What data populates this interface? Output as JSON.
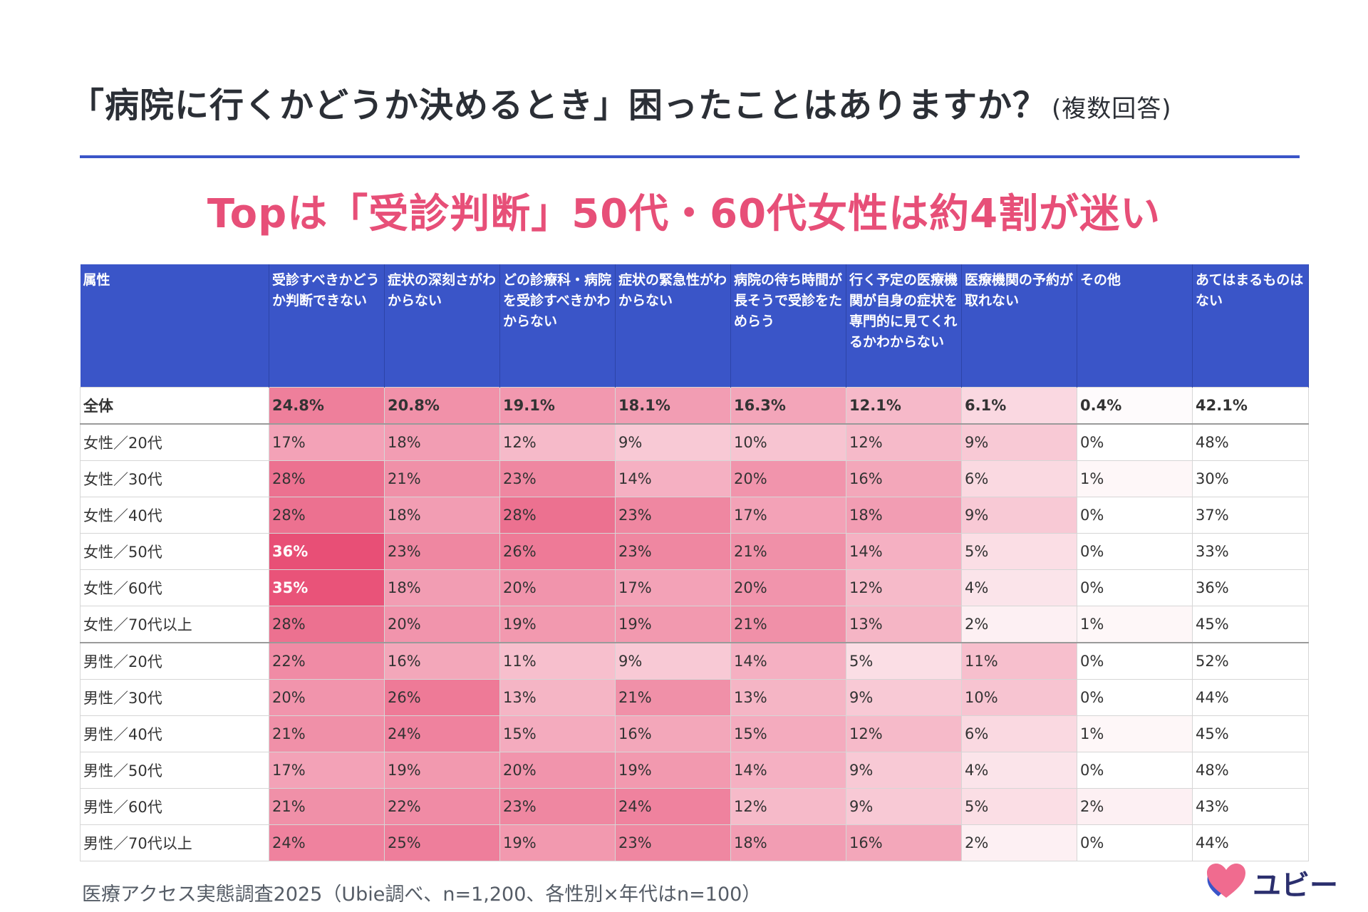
{
  "title": {
    "main": "「病院に行くかどうか決めるとき」困ったことはありますか？",
    "note": "(複数回答)"
  },
  "headline": "Topは「受診判断」50代・60代女性は約4割が迷い",
  "source": "医療アクセス実態調査2025（Ubie調べ、n=1,200、各性別×年代はn=100）",
  "logo": {
    "text": "ユビー"
  },
  "colors": {
    "header": "#3a55c8",
    "accent": "#e74f78",
    "heat_max": "#e84f76",
    "heat_min": "#ffffff"
  },
  "chart_data": {
    "type": "table",
    "columns": [
      "属性",
      "受診すべきかどうか判断できない",
      "症状の深刻さがわからない",
      "どの診療科・病院を受診すべきかわからない",
      "症状の緊急性がわからない",
      "病院の待ち時間が長そうで受診をためらう",
      "行く予定の医療機関が自身の症状を専門的に見てくれるかわからない",
      "医療機関の予約が取れない",
      "その他",
      "あてはまるものはない"
    ],
    "rows": [
      {
        "label": "全体",
        "cells": [
          "24.8%",
          "20.8%",
          "19.1%",
          "18.1%",
          "16.3%",
          "12.1%",
          "6.1%",
          "0.4%",
          "42.1%"
        ],
        "values": [
          24.8,
          20.8,
          19.1,
          18.1,
          16.3,
          12.1,
          6.1,
          0.4,
          42.1
        ]
      },
      {
        "label": "女性／20代",
        "cells": [
          "17%",
          "18%",
          "12%",
          "9%",
          "10%",
          "12%",
          "9%",
          "0%",
          "48%"
        ],
        "values": [
          17,
          18,
          12,
          9,
          10,
          12,
          9,
          0,
          48
        ]
      },
      {
        "label": "女性／30代",
        "cells": [
          "28%",
          "21%",
          "23%",
          "14%",
          "20%",
          "16%",
          "6%",
          "1%",
          "30%"
        ],
        "values": [
          28,
          21,
          23,
          14,
          20,
          16,
          6,
          1,
          30
        ]
      },
      {
        "label": "女性／40代",
        "cells": [
          "28%",
          "18%",
          "28%",
          "23%",
          "17%",
          "18%",
          "9%",
          "0%",
          "37%"
        ],
        "values": [
          28,
          18,
          28,
          23,
          17,
          18,
          9,
          0,
          37
        ]
      },
      {
        "label": "女性／50代",
        "cells": [
          "36%",
          "23%",
          "26%",
          "23%",
          "21%",
          "14%",
          "5%",
          "0%",
          "33%"
        ],
        "values": [
          36,
          23,
          26,
          23,
          21,
          14,
          5,
          0,
          33
        ]
      },
      {
        "label": "女性／60代",
        "cells": [
          "35%",
          "18%",
          "20%",
          "17%",
          "20%",
          "12%",
          "4%",
          "0%",
          "36%"
        ],
        "values": [
          35,
          18,
          20,
          17,
          20,
          12,
          4,
          0,
          36
        ]
      },
      {
        "label": "女性／70代以上",
        "cells": [
          "28%",
          "20%",
          "19%",
          "19%",
          "21%",
          "13%",
          "2%",
          "1%",
          "45%"
        ],
        "values": [
          28,
          20,
          19,
          19,
          21,
          13,
          2,
          1,
          45
        ]
      },
      {
        "label": "男性／20代",
        "cells": [
          "22%",
          "16%",
          "11%",
          "9%",
          "14%",
          "5%",
          "11%",
          "0%",
          "52%"
        ],
        "values": [
          22,
          16,
          11,
          9,
          14,
          5,
          11,
          0,
          52
        ]
      },
      {
        "label": "男性／30代",
        "cells": [
          "20%",
          "26%",
          "13%",
          "21%",
          "13%",
          "9%",
          "10%",
          "0%",
          "44%"
        ],
        "values": [
          20,
          26,
          13,
          21,
          13,
          9,
          10,
          0,
          44
        ]
      },
      {
        "label": "男性／40代",
        "cells": [
          "21%",
          "24%",
          "15%",
          "16%",
          "15%",
          "12%",
          "6%",
          "1%",
          "45%"
        ],
        "values": [
          21,
          24,
          15,
          16,
          15,
          12,
          6,
          1,
          45
        ]
      },
      {
        "label": "男性／50代",
        "cells": [
          "17%",
          "19%",
          "20%",
          "19%",
          "14%",
          "9%",
          "4%",
          "0%",
          "48%"
        ],
        "values": [
          17,
          19,
          20,
          19,
          14,
          9,
          4,
          0,
          48
        ]
      },
      {
        "label": "男性／60代",
        "cells": [
          "21%",
          "22%",
          "23%",
          "24%",
          "12%",
          "9%",
          "5%",
          "2%",
          "43%"
        ],
        "values": [
          21,
          22,
          23,
          24,
          12,
          9,
          5,
          2,
          43
        ]
      },
      {
        "label": "男性／70代以上",
        "cells": [
          "24%",
          "25%",
          "19%",
          "23%",
          "18%",
          "16%",
          "2%",
          "0%",
          "44%"
        ],
        "values": [
          24,
          25,
          19,
          23,
          18,
          16,
          2,
          0,
          44
        ]
      }
    ],
    "shaded_columns": [
      1,
      2,
      3,
      4,
      5,
      6,
      7,
      8
    ],
    "highlighted_cells": [
      "36%",
      "35%"
    ]
  }
}
